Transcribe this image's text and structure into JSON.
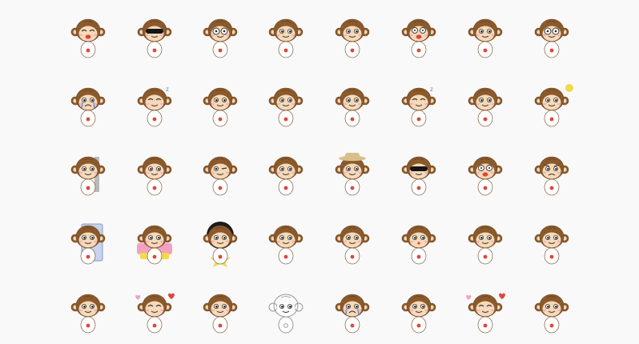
{
  "sticker_grid": {
    "rows": 5,
    "columns": 8,
    "colors": {
      "background": "#f9f9f9",
      "fur": "#8b5a2b",
      "fur_dark": "#6b4220",
      "face": "#f6d9b8",
      "shirt": "#ffffff",
      "accent_red": "#e0443a",
      "accent_yellow": "#f5d94a",
      "accent_blue": "#5b8fd6",
      "accent_pink": "#f3a1c0"
    },
    "stickers": [
      {
        "icon": "monkey-laughing-icon"
      },
      {
        "icon": "monkey-sunglasses-icon"
      },
      {
        "icon": "monkey-glasses-hearts-icon"
      },
      {
        "icon": "monkey-shy-icon"
      },
      {
        "icon": "monkey-waving-icon"
      },
      {
        "icon": "monkey-surprised-icon"
      },
      {
        "icon": "monkey-thinking-icon"
      },
      {
        "icon": "monkey-nerd-icon"
      },
      {
        "icon": "monkey-crying-icon"
      },
      {
        "icon": "monkey-sleeping-icon"
      },
      {
        "icon": "monkey-alarm-clock-icon"
      },
      {
        "icon": "monkey-dancing-icon"
      },
      {
        "icon": "monkey-guitar-icon"
      },
      {
        "icon": "monkey-bathing-icon"
      },
      {
        "icon": "monkey-sad-rain-icon"
      },
      {
        "icon": "monkey-sunny-icon"
      },
      {
        "icon": "monkey-peeking-wall-icon"
      },
      {
        "icon": "monkey-whistling-icon"
      },
      {
        "icon": "monkey-winking-icon"
      },
      {
        "icon": "monkey-hugging-icon"
      },
      {
        "icon": "monkey-hat-icon"
      },
      {
        "icon": "monkey-cool-music-icon"
      },
      {
        "icon": "monkey-shocked-icon"
      },
      {
        "icon": "monkey-angry-icon"
      },
      {
        "icon": "monkey-door-icon"
      },
      {
        "icon": "monkey-birthday-icon"
      },
      {
        "icon": "monkey-afro-star-icon"
      },
      {
        "icon": "monkey-reading-icon"
      },
      {
        "icon": "monkey-pouting-icon"
      },
      {
        "icon": "monkey-kissing-icon"
      },
      {
        "icon": "monkey-giggling-icon"
      },
      {
        "icon": "monkey-pizza-icon"
      },
      {
        "icon": "monkey-bored-icon"
      },
      {
        "icon": "monkey-blushing-icon"
      },
      {
        "icon": "monkey-gift-icon"
      },
      {
        "icon": "monkey-sketch-icon"
      },
      {
        "icon": "monkey-sobbing-icon"
      },
      {
        "icon": "monkey-surfing-icon"
      },
      {
        "icon": "monkey-in-love-icon"
      },
      {
        "icon": "monkey-flower-icon"
      }
    ]
  }
}
